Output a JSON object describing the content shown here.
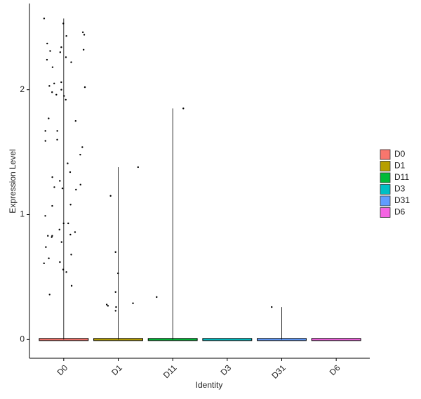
{
  "chart_data": {
    "type": "violin",
    "x_label": "Identity",
    "y_label": "Expression Level",
    "categories": [
      "D0",
      "D1",
      "D11",
      "D3",
      "D31",
      "D6"
    ],
    "colors": [
      "#F8766D",
      "#B79F00",
      "#00BA38",
      "#00BFC4",
      "#619CFF",
      "#F564E3"
    ],
    "points": [
      [
        2.53,
        2.43,
        2.24,
        2.18,
        2.06,
        1.95,
        1.67,
        1.48,
        1.41,
        1.27,
        1.22,
        1.2,
        1.08,
        0.99,
        0.93,
        0.83,
        0.68,
        0.65,
        0.54,
        0.56,
        0.36,
        2.57,
        2.46,
        2.44,
        2.37,
        2.34,
        2.32,
        2.31,
        2.3,
        2.26,
        2.22,
        2.05,
        2.03,
        2.02,
        2.0,
        1.98,
        1.92,
        1.96,
        1.77,
        1.75,
        1.67,
        1.6,
        1.59,
        1.54,
        1.3,
        1.24,
        1.21,
        1.07,
        0.93,
        0.88,
        0.86,
        0.84,
        0.83,
        0.82,
        0.78,
        0.74,
        0.61,
        0.62,
        0.43,
        1.34
      ],
      [
        1.38,
        1.15,
        0.7,
        0.53,
        0.38,
        0.29,
        0.26,
        0.23,
        0.27,
        0.28
      ],
      [
        1.85,
        0.34
      ],
      [],
      [
        0.26
      ],
      []
    ],
    "ylim": [
      -0.15,
      2.69
    ],
    "yticks": [
      0,
      1,
      2
    ]
  }
}
